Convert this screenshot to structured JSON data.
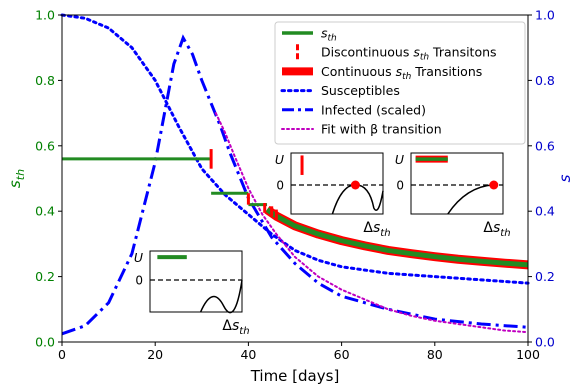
{
  "chart_data": {
    "type": "line",
    "title": "",
    "xlabel": "Time [days]",
    "ylabel_left": "s_th",
    "ylabel_right": "s",
    "xlim": [
      0,
      100
    ],
    "ylim_left": [
      0,
      1
    ],
    "ylim_right": [
      0,
      1
    ],
    "x_ticks": [
      0,
      20,
      40,
      60,
      80,
      100
    ],
    "y_ticks": [
      0.0,
      0.2,
      0.4,
      0.6,
      0.8,
      1.0
    ],
    "x_tick_labels": [
      "0",
      "20",
      "40",
      "60",
      "80",
      "100"
    ],
    "y_tick_labels": [
      "0.0",
      "0.2",
      "0.4",
      "0.6",
      "0.8",
      "1.0"
    ],
    "legend_position": "top-right",
    "legend": [
      {
        "key": "sth",
        "label": "s_th"
      },
      {
        "key": "discont",
        "label": "Discontinuous s_th Transitons"
      },
      {
        "key": "cont",
        "label": "Continuous s_th Transitions"
      },
      {
        "key": "susc",
        "label": "Susceptibles"
      },
      {
        "key": "inf",
        "label": "Infected (scaled)"
      },
      {
        "key": "fit",
        "label": "Fit with β transition"
      }
    ],
    "colors": {
      "sth": "#228b22",
      "transition": "#ff0000",
      "susceptibles": "#0000ff",
      "infected": "#0000ff",
      "fit": "#c000c0",
      "axis_left": "#008000",
      "axis_right": "#0000cc"
    },
    "series": [
      {
        "name": "s_th",
        "segments": [
          {
            "x": [
              0,
              32
            ],
            "y": [
              0.56,
              0.56
            ]
          },
          {
            "x": [
              32,
              40
            ],
            "y": [
              0.455,
              0.455
            ]
          },
          {
            "x": [
              40,
              44
            ],
            "y": [
              0.42,
              0.42
            ]
          },
          {
            "x": [
              44,
              46,
              50,
              55,
              60,
              65,
              70,
              75,
              80,
              85,
              90,
              95,
              100
            ],
            "y": [
              0.405,
              0.385,
              0.355,
              0.33,
              0.31,
              0.294,
              0.28,
              0.27,
              0.261,
              0.253,
              0.247,
              0.241,
              0.236
            ]
          }
        ]
      },
      {
        "name": "Discontinuous s_th Transitons",
        "x": [
          32,
          40,
          43.5,
          45,
          46
        ],
        "y_low": [
          0.53,
          0.42,
          0.395,
          0.385,
          0.375
        ],
        "y_high": [
          0.59,
          0.455,
          0.425,
          0.415,
          0.405
        ]
      },
      {
        "name": "Susceptibles",
        "x": [
          0,
          5,
          10,
          15,
          20,
          25,
          30,
          35,
          40,
          45,
          50,
          55,
          60,
          70,
          80,
          90,
          100
        ],
        "y": [
          1.0,
          0.99,
          0.96,
          0.9,
          0.8,
          0.66,
          0.53,
          0.45,
          0.39,
          0.33,
          0.28,
          0.25,
          0.23,
          0.21,
          0.2,
          0.19,
          0.18
        ]
      },
      {
        "name": "Infected (scaled)",
        "x": [
          0,
          5,
          10,
          15,
          20,
          22,
          24,
          26,
          28,
          30,
          32,
          34,
          36,
          40,
          45,
          50,
          55,
          60,
          70,
          80,
          90,
          100
        ],
        "y": [
          0.025,
          0.05,
          0.12,
          0.27,
          0.55,
          0.7,
          0.85,
          0.93,
          0.88,
          0.8,
          0.73,
          0.66,
          0.58,
          0.44,
          0.32,
          0.24,
          0.18,
          0.14,
          0.1,
          0.07,
          0.055,
          0.045
        ]
      },
      {
        "name": "Fit with β transition",
        "x": [
          33,
          35,
          37,
          40,
          43,
          46,
          50,
          55,
          60,
          65,
          70,
          75,
          80,
          85,
          90,
          95,
          100
        ],
        "y": [
          0.7,
          0.64,
          0.57,
          0.47,
          0.39,
          0.33,
          0.26,
          0.2,
          0.16,
          0.13,
          0.1,
          0.08,
          0.065,
          0.055,
          0.045,
          0.035,
          0.03
        ]
      }
    ],
    "insets": [
      {
        "name": "inset-left",
        "ylabel": "U",
        "xlabel": "Δs_th",
        "zero_label": "0",
        "marker": "green-bar",
        "curve": "well-right"
      },
      {
        "name": "inset-middle",
        "ylabel": "U",
        "xlabel": "Δs_th",
        "zero_label": "0",
        "marker": "red-vertical",
        "curve": "dot-then-well"
      },
      {
        "name": "inset-right",
        "ylabel": "U",
        "xlabel": "Δs_th",
        "zero_label": "0",
        "marker": "green-red-bar",
        "curve": "rising-to-dot"
      }
    ]
  }
}
